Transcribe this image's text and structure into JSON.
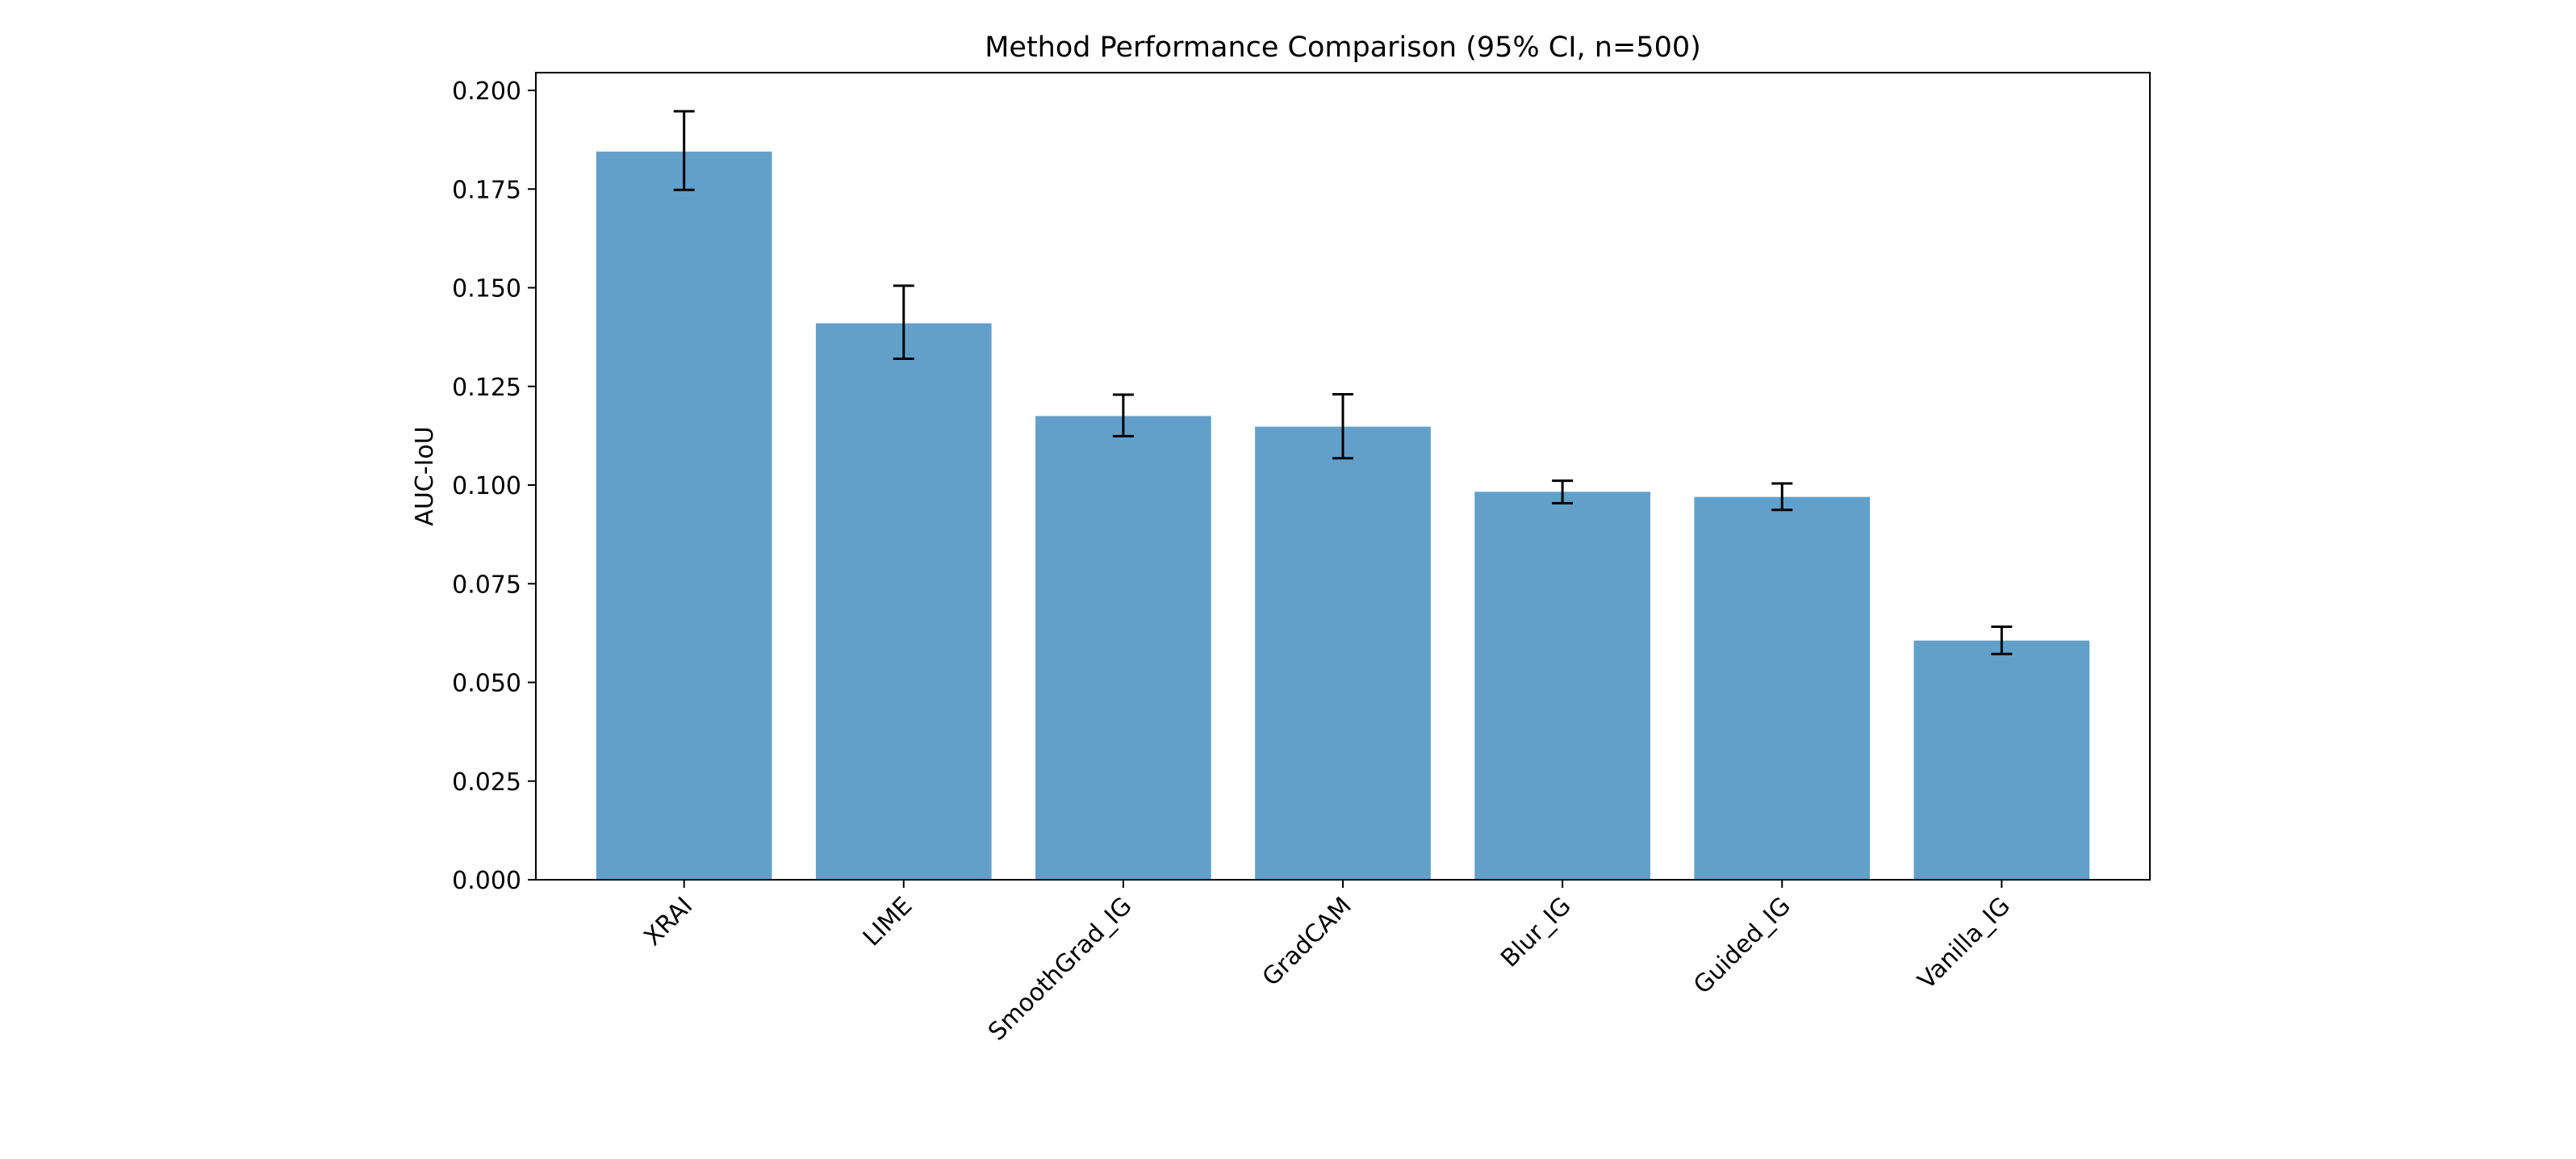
{
  "chart_data": {
    "type": "bar",
    "title": "Method Performance Comparison (95% CI, n=500)",
    "xlabel": "",
    "ylabel": "AUC-IoU",
    "ylim": [
      0,
      0.2045
    ],
    "yticks": [
      "0.000",
      "0.025",
      "0.050",
      "0.075",
      "0.100",
      "0.125",
      "0.150",
      "0.175",
      "0.200"
    ],
    "grid": false,
    "legend": "none",
    "categories": [
      "XRAI",
      "LIME",
      "SmoothGrad_IG",
      "GradCAM",
      "Blur_IG",
      "Guided_IG",
      "Vanilla_IG"
    ],
    "values": [
      0.1845,
      0.141,
      0.1175,
      0.1148,
      0.0983,
      0.097,
      0.0606
    ],
    "ci_lower": [
      0.1748,
      0.132,
      0.1124,
      0.1068,
      0.0954,
      0.0937,
      0.0572
    ],
    "ci_upper": [
      0.1947,
      0.1505,
      0.1229,
      0.123,
      0.1011,
      0.1004,
      0.0641
    ],
    "bar_color": "#62a0ca",
    "error_color": "#000000"
  }
}
